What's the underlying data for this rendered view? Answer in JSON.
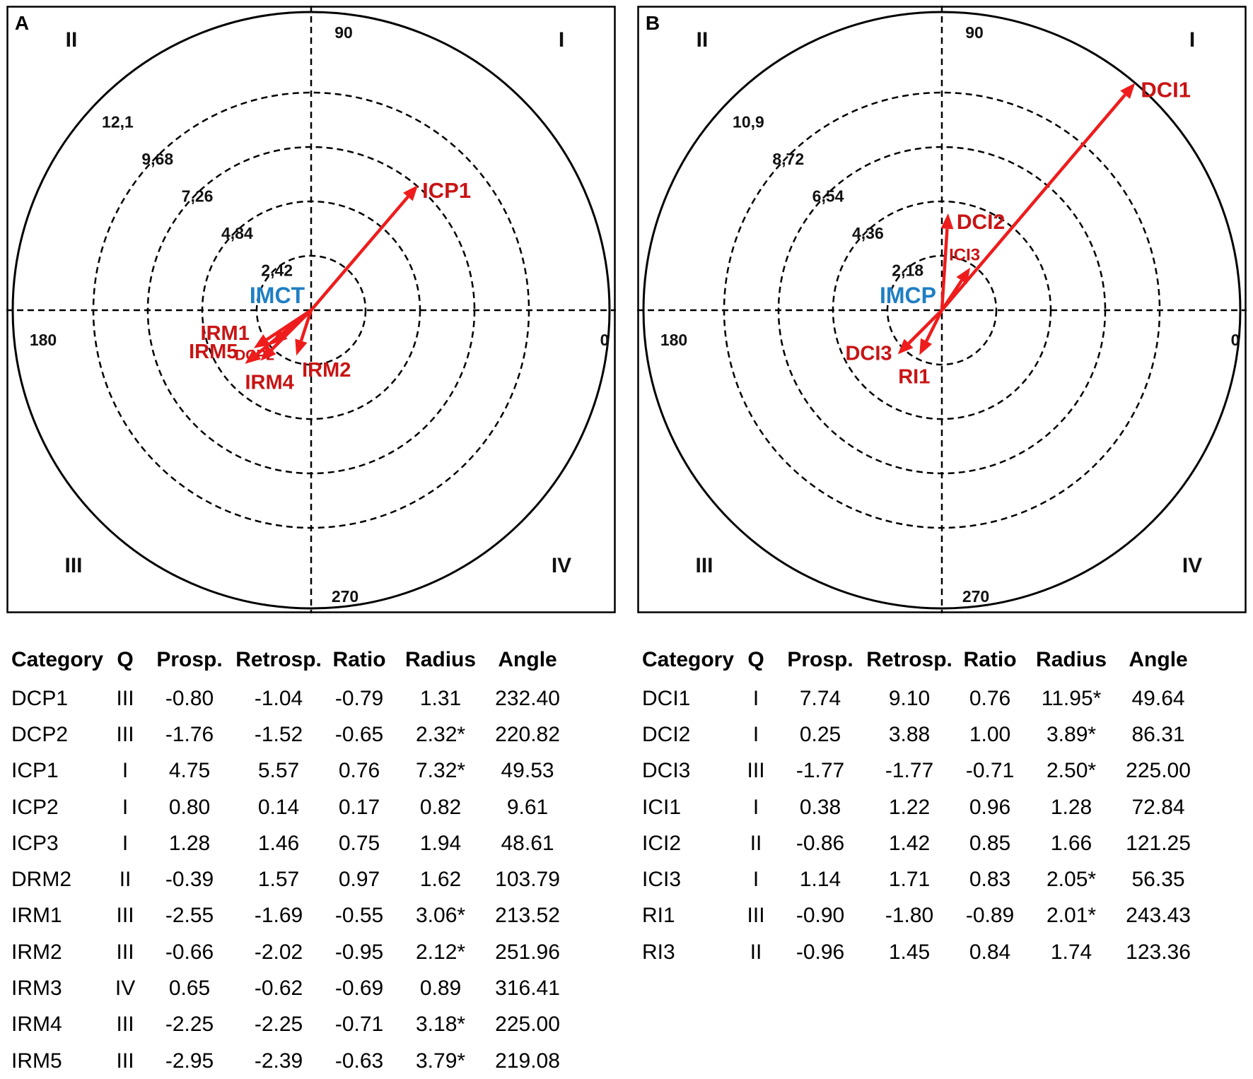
{
  "chart_data": [
    {
      "type": "polar-vector",
      "panel": "A",
      "center_label": "IMCT",
      "ring_labels": [
        "2,42",
        "4,84",
        "7,26",
        "9,68",
        "12,1"
      ],
      "ring_values": [
        2.42,
        4.84,
        7.26,
        9.68,
        12.1
      ],
      "angle_labels": [
        "0",
        "90",
        "180",
        "270"
      ],
      "quadrant_labels": [
        "I",
        "II",
        "III",
        "IV"
      ],
      "vectors": [
        {
          "label": "ICP1",
          "radius": 7.32,
          "angle": 49.53
        },
        {
          "label": "IRM1",
          "radius": 3.06,
          "angle": 213.52
        },
        {
          "label": "DCP2",
          "radius": 2.32,
          "angle": 220.82
        },
        {
          "label": "IRM2",
          "radius": 2.12,
          "angle": 251.96
        },
        {
          "label": "IRM4",
          "radius": 3.18,
          "angle": 225.0
        },
        {
          "label": "IRM5",
          "radius": 3.79,
          "angle": 219.08
        }
      ],
      "table": {
        "headers": [
          "Category",
          "Q",
          "Prosp.",
          "Retrosp.",
          "Ratio",
          "Radius",
          "Angle"
        ],
        "rows": [
          [
            "DCP1",
            "III",
            "-0.80",
            "-1.04",
            "-0.79",
            "1.31",
            "232.40"
          ],
          [
            "DCP2",
            "III",
            "-1.76",
            "-1.52",
            "-0.65",
            "2.32*",
            "220.82"
          ],
          [
            "ICP1",
            "I",
            "4.75",
            "5.57",
            "0.76",
            "7.32*",
            "49.53"
          ],
          [
            "ICP2",
            "I",
            "0.80",
            "0.14",
            "0.17",
            "0.82",
            "9.61"
          ],
          [
            "ICP3",
            "I",
            "1.28",
            "1.46",
            "0.75",
            "1.94",
            "48.61"
          ],
          [
            "DRM2",
            "II",
            "-0.39",
            "1.57",
            "0.97",
            "1.62",
            "103.79"
          ],
          [
            "IRM1",
            "III",
            "-2.55",
            "-1.69",
            "-0.55",
            "3.06*",
            "213.52"
          ],
          [
            "IRM2",
            "III",
            "-0.66",
            "-2.02",
            "-0.95",
            "2.12*",
            "251.96"
          ],
          [
            "IRM3",
            "IV",
            "0.65",
            "-0.62",
            "-0.69",
            "0.89",
            "316.41"
          ],
          [
            "IRM4",
            "III",
            "-2.25",
            "-2.25",
            "-0.71",
            "3.18*",
            "225.00"
          ],
          [
            "IRM5",
            "III",
            "-2.95",
            "-2.39",
            "-0.63",
            "3.79*",
            "219.08"
          ]
        ]
      }
    },
    {
      "type": "polar-vector",
      "panel": "B",
      "center_label": "IMCP",
      "ring_labels": [
        "2,18",
        "4,36",
        "6,54",
        "8,72",
        "10,9"
      ],
      "ring_values": [
        2.18,
        4.36,
        6.54,
        8.72,
        10.9
      ],
      "angle_labels": [
        "0",
        "90",
        "180",
        "270"
      ],
      "quadrant_labels": [
        "I",
        "II",
        "III",
        "IV"
      ],
      "vectors": [
        {
          "label": "DCI1",
          "radius": 11.95,
          "angle": 49.64
        },
        {
          "label": "DCI2",
          "radius": 3.89,
          "angle": 86.31
        },
        {
          "label": "ICI3",
          "radius": 2.05,
          "angle": 56.35
        },
        {
          "label": "DCI3",
          "radius": 2.5,
          "angle": 225.0
        },
        {
          "label": "RI1",
          "radius": 2.01,
          "angle": 243.43
        }
      ],
      "table": {
        "headers": [
          "Category",
          "Q",
          "Prosp.",
          "Retrosp.",
          "Ratio",
          "Radius",
          "Angle"
        ],
        "rows": [
          [
            "DCI1",
            "I",
            "7.74",
            "9.10",
            "0.76",
            "11.95*",
            "49.64"
          ],
          [
            "DCI2",
            "I",
            "0.25",
            "3.88",
            "1.00",
            "3.89*",
            "86.31"
          ],
          [
            "DCI3",
            "III",
            "-1.77",
            "-1.77",
            "-0.71",
            "2.50*",
            "225.00"
          ],
          [
            "ICI1",
            "I",
            "0.38",
            "1.22",
            "0.96",
            "1.28",
            "72.84"
          ],
          [
            "ICI2",
            "II",
            "-0.86",
            "1.42",
            "0.85",
            "1.66",
            "121.25"
          ],
          [
            "ICI3",
            "I",
            "1.14",
            "1.71",
            "0.83",
            "2.05*",
            "56.35"
          ],
          [
            "RI1",
            "III",
            "-0.90",
            "-1.80",
            "-0.89",
            "2.01*",
            "243.43"
          ],
          [
            "RI3",
            "II",
            "-0.96",
            "1.45",
            "0.84",
            "1.74",
            "123.36"
          ]
        ]
      }
    }
  ]
}
